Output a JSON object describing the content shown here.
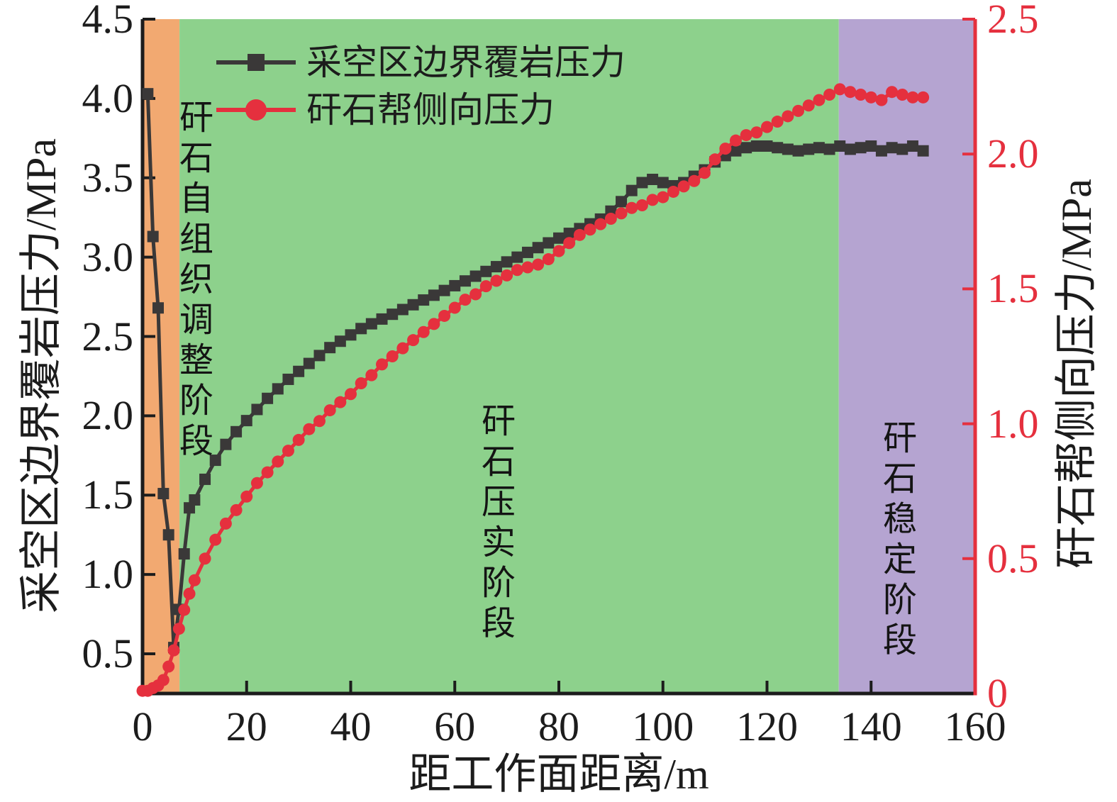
{
  "chart_data": {
    "type": "line",
    "title": "",
    "xlabel": "距工作面距离/m",
    "ylabel_left": "采空区边界覆岩压力/MPa",
    "ylabel_right": "矸石帮侧向压力/MPa",
    "xlim": [
      0,
      160
    ],
    "ylim_left": [
      0.25,
      4.5
    ],
    "ylim_right": [
      0,
      2.5
    ],
    "grid": false,
    "legend_position": "inside-top-left",
    "x_ticks": [
      0,
      20,
      40,
      60,
      80,
      100,
      120,
      140,
      160
    ],
    "x_tick_labels": [
      "0",
      "20",
      "40",
      "60",
      "80",
      "100",
      "120",
      "140",
      "160"
    ],
    "left_ticks": [
      0.5,
      1.0,
      1.5,
      2.0,
      2.5,
      3.0,
      3.5,
      4.0,
      4.5
    ],
    "left_tick_labels": [
      "0.5",
      "1.0",
      "1.5",
      "2.0",
      "2.5",
      "3.0",
      "3.5",
      "4.0",
      "4.5"
    ],
    "right_ticks": [
      0,
      0.5,
      1.0,
      1.5,
      2.0,
      2.5
    ],
    "right_tick_labels": [
      "0",
      "0.5",
      "1.0",
      "1.5",
      "2.0",
      "2.5"
    ],
    "axis_colors": {
      "left": "#1c1c1c",
      "bottom": "#1c1c1c",
      "right": "#e5303e"
    },
    "regions": [
      {
        "label": "矸石自组织调整阶段",
        "x_start": 0,
        "x_end": 7.1,
        "color": "#f2a971"
      },
      {
        "label": "矸石压实阶段",
        "x_start": 7.1,
        "x_end": 133.8,
        "color": "#8dd18c"
      },
      {
        "label": "矸石稳定阶段",
        "x_start": 133.8,
        "x_end": 160,
        "color": "#b5a4d1"
      }
    ],
    "series": [
      {
        "name": "采空区边界覆岩压力",
        "axis": "left",
        "color": "#3a3838",
        "marker": "square",
        "x": [
          1,
          2,
          3,
          4,
          5,
          6,
          7,
          8,
          9,
          10,
          12,
          14,
          16,
          18,
          20,
          22,
          24,
          26,
          28,
          30,
          32,
          34,
          36,
          38,
          40,
          42,
          44,
          46,
          48,
          50,
          52,
          54,
          56,
          58,
          60,
          62,
          64,
          66,
          68,
          70,
          72,
          74,
          76,
          78,
          80,
          82,
          84,
          86,
          88,
          90,
          92,
          94,
          96,
          98,
          100,
          102,
          104,
          106,
          108,
          110,
          112,
          114,
          116,
          118,
          120,
          122,
          124,
          126,
          128,
          130,
          132,
          134,
          136,
          138,
          140,
          142,
          144,
          146,
          148,
          150
        ],
        "values": [
          4.03,
          3.13,
          2.68,
          1.51,
          1.25,
          0.54,
          0.78,
          1.13,
          1.42,
          1.47,
          1.6,
          1.72,
          1.82,
          1.9,
          1.97,
          2.04,
          2.11,
          2.17,
          2.23,
          2.28,
          2.33,
          2.38,
          2.43,
          2.47,
          2.51,
          2.55,
          2.58,
          2.61,
          2.64,
          2.67,
          2.7,
          2.73,
          2.76,
          2.79,
          2.82,
          2.85,
          2.88,
          2.91,
          2.94,
          2.97,
          3.0,
          3.03,
          3.06,
          3.09,
          3.12,
          3.15,
          3.18,
          3.21,
          3.24,
          3.29,
          3.35,
          3.42,
          3.47,
          3.49,
          3.47,
          3.45,
          3.47,
          3.51,
          3.55,
          3.6,
          3.64,
          3.67,
          3.69,
          3.7,
          3.7,
          3.69,
          3.68,
          3.67,
          3.68,
          3.69,
          3.68,
          3.7,
          3.68,
          3.69,
          3.7,
          3.67,
          3.69,
          3.68,
          3.7,
          3.67
        ]
      },
      {
        "name": "矸石帮侧向压力",
        "axis": "right",
        "color": "#e5303e",
        "marker": "circle",
        "x": [
          0,
          1,
          2,
          3,
          4,
          5,
          6,
          7,
          8,
          9,
          10,
          12,
          14,
          16,
          18,
          20,
          22,
          24,
          26,
          28,
          30,
          32,
          34,
          36,
          38,
          40,
          42,
          44,
          46,
          48,
          50,
          52,
          54,
          56,
          58,
          60,
          62,
          64,
          66,
          68,
          70,
          72,
          74,
          76,
          78,
          80,
          82,
          84,
          86,
          88,
          90,
          92,
          94,
          96,
          98,
          100,
          102,
          104,
          106,
          108,
          110,
          112,
          114,
          116,
          118,
          120,
          122,
          124,
          126,
          128,
          130,
          132,
          134,
          136,
          138,
          140,
          142,
          144,
          146,
          148,
          150
        ],
        "values": [
          0.01,
          0.01,
          0.02,
          0.03,
          0.05,
          0.1,
          0.16,
          0.24,
          0.31,
          0.37,
          0.42,
          0.5,
          0.57,
          0.63,
          0.68,
          0.73,
          0.78,
          0.82,
          0.86,
          0.9,
          0.94,
          0.98,
          1.01,
          1.05,
          1.08,
          1.11,
          1.15,
          1.18,
          1.22,
          1.25,
          1.28,
          1.31,
          1.34,
          1.37,
          1.4,
          1.43,
          1.46,
          1.48,
          1.51,
          1.53,
          1.55,
          1.57,
          1.58,
          1.59,
          1.61,
          1.64,
          1.67,
          1.7,
          1.72,
          1.74,
          1.76,
          1.78,
          1.8,
          1.81,
          1.83,
          1.84,
          1.86,
          1.88,
          1.9,
          1.93,
          1.98,
          2.02,
          2.05,
          2.07,
          2.08,
          2.1,
          2.12,
          2.14,
          2.16,
          2.18,
          2.2,
          2.22,
          2.24,
          2.23,
          2.22,
          2.21,
          2.2,
          2.23,
          2.22,
          2.21,
          2.21
        ]
      }
    ]
  }
}
